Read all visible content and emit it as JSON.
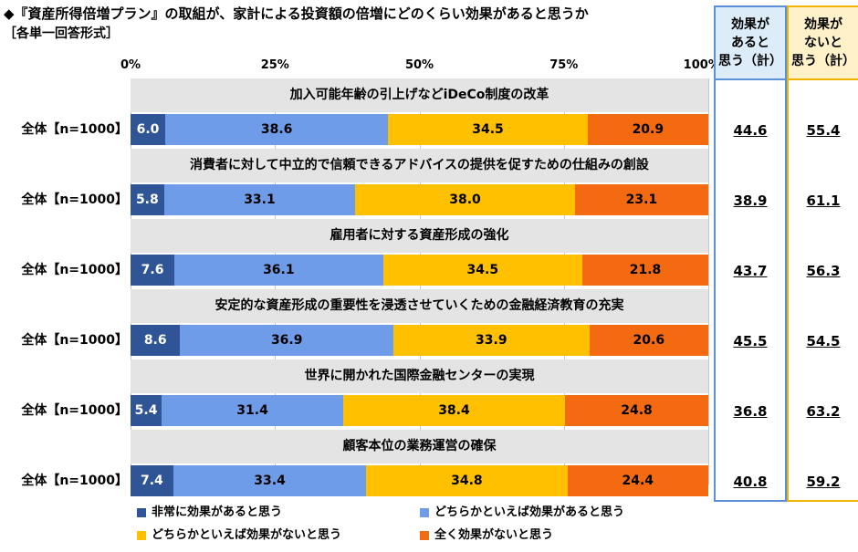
{
  "header": {
    "title": "◆『資産所得倍増プラン』の取組が、家計による投資額の倍増にどのくらい効果があると思うか",
    "subtitle": "［各単一回答形式］"
  },
  "colors": {
    "very_effective": "#2f5596",
    "somewhat_effective": "#6f9ce8",
    "somewhat_not": "#ffc000",
    "not_at_all": "#f36a10",
    "band": "#e4e4e4",
    "sum_effective_bg": "#dcecf9",
    "sum_effective_border": "#5b8fd6",
    "sum_not_bg": "#fff1c8",
    "sum_not_border": "#f0b400"
  },
  "summary_headers": {
    "effective": [
      "効果が",
      "あると",
      "思う（計）"
    ],
    "not_effective": [
      "効果が",
      "ないと",
      "思う（計）"
    ]
  },
  "chart_data": {
    "type": "bar",
    "orientation": "horizontal",
    "stacked": true,
    "xlim": [
      0,
      100
    ],
    "ticks": [
      "0%",
      "25%",
      "50%",
      "75%",
      "100%"
    ],
    "legend_position": "bottom",
    "series": [
      {
        "name": "非常に効果があると思う",
        "color_key": "very_effective"
      },
      {
        "name": "どちらかといえば効果があると思う",
        "color_key": "somewhat_effective"
      },
      {
        "name": "どちらかといえば効果がないと思う",
        "color_key": "somewhat_not"
      },
      {
        "name": "全く効果がないと思う",
        "color_key": "not_at_all"
      }
    ],
    "items": [
      {
        "heading": "加入可能年齢の引上げなどiDeCo制度の改革",
        "row_label": "全体【n=1000】",
        "values": [
          6.0,
          38.6,
          34.5,
          20.9
        ],
        "labels": [
          "6.0",
          "38.6",
          "34.5",
          "20.9"
        ],
        "effective_total": "44.6",
        "not_effective_total": "55.4"
      },
      {
        "heading": "消費者に対して中立的で信頼できるアドバイスの提供を促すための仕組みの創設",
        "row_label": "全体【n=1000】",
        "values": [
          5.8,
          33.1,
          38.0,
          23.1
        ],
        "labels": [
          "5.8",
          "33.1",
          "38.0",
          "23.1"
        ],
        "effective_total": "38.9",
        "not_effective_total": "61.1"
      },
      {
        "heading": "雇用者に対する資産形成の強化",
        "row_label": "全体【n=1000】",
        "values": [
          7.6,
          36.1,
          34.5,
          21.8
        ],
        "labels": [
          "7.6",
          "36.1",
          "34.5",
          "21.8"
        ],
        "effective_total": "43.7",
        "not_effective_total": "56.3"
      },
      {
        "heading": "安定的な資産形成の重要性を浸透させていくための金融経済教育の充実",
        "row_label": "全体【n=1000】",
        "values": [
          8.6,
          36.9,
          33.9,
          20.6
        ],
        "labels": [
          "8.6",
          "36.9",
          "33.9",
          "20.6"
        ],
        "effective_total": "45.5",
        "not_effective_total": "54.5"
      },
      {
        "heading": "世界に開かれた国際金融センターの実現",
        "row_label": "全体【n=1000】",
        "values": [
          5.4,
          31.4,
          38.4,
          24.8
        ],
        "labels": [
          "5.4",
          "31.4",
          "38.4",
          "24.8"
        ],
        "effective_total": "36.8",
        "not_effective_total": "63.2"
      },
      {
        "heading": "顧客本位の業務運営の確保",
        "row_label": "全体【n=1000】",
        "values": [
          7.4,
          33.4,
          34.8,
          24.4
        ],
        "labels": [
          "7.4",
          "33.4",
          "34.8",
          "24.4"
        ],
        "effective_total": "40.8",
        "not_effective_total": "59.2"
      }
    ]
  }
}
